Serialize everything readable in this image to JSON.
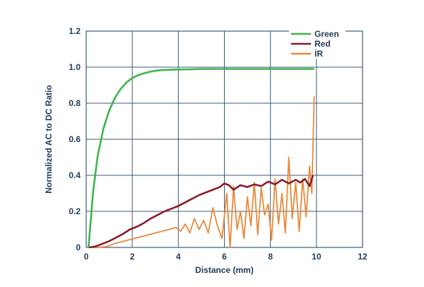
{
  "chart_data": {
    "type": "line",
    "title": "",
    "xlabel": "Distance (mm)",
    "ylabel": "Normalized AC to DC Ratio",
    "xlim": [
      0,
      12
    ],
    "ylim": [
      0,
      1.2
    ],
    "x_ticks": [
      "0",
      "2",
      "4",
      "6",
      "8",
      "10",
      "12"
    ],
    "y_ticks": [
      "0",
      "0.2",
      "0.4",
      "0.6",
      "0.8",
      "1.0",
      "1.2"
    ],
    "grid": true,
    "legend_position": "top-right",
    "series": [
      {
        "name": "Green",
        "color": "#3cb54a",
        "x": [
          0.1,
          0.3,
          0.5,
          0.75,
          1.0,
          1.25,
          1.5,
          1.75,
          2.0,
          2.25,
          2.5,
          2.75,
          3.0,
          3.25,
          3.5,
          3.75,
          4.0,
          4.5,
          5.0,
          6.0,
          7.0,
          8.0,
          9.0,
          9.9
        ],
        "y": [
          0.0,
          0.31,
          0.51,
          0.66,
          0.76,
          0.83,
          0.88,
          0.915,
          0.94,
          0.955,
          0.966,
          0.974,
          0.98,
          0.983,
          0.985,
          0.986,
          0.987,
          0.988,
          0.99,
          0.99,
          0.99,
          0.99,
          0.99,
          0.99
        ]
      },
      {
        "name": "Red",
        "color": "#8b1a2b",
        "x": [
          0.1,
          0.4,
          0.7,
          1.0,
          1.3,
          1.6,
          1.9,
          2.2,
          2.5,
          2.8,
          3.1,
          3.4,
          3.7,
          4.0,
          4.3,
          4.6,
          4.9,
          5.2,
          5.5,
          5.8,
          6.0,
          6.2,
          6.4,
          6.7,
          7.0,
          7.3,
          7.6,
          7.9,
          8.2,
          8.5,
          8.8,
          9.1,
          9.3,
          9.5,
          9.7,
          9.85
        ],
        "y": [
          0.0,
          0.005,
          0.02,
          0.035,
          0.055,
          0.075,
          0.1,
          0.115,
          0.135,
          0.16,
          0.18,
          0.2,
          0.215,
          0.23,
          0.25,
          0.27,
          0.29,
          0.305,
          0.32,
          0.335,
          0.355,
          0.345,
          0.32,
          0.345,
          0.335,
          0.35,
          0.34,
          0.365,
          0.35,
          0.375,
          0.355,
          0.375,
          0.36,
          0.38,
          0.34,
          0.4
        ]
      },
      {
        "name": "IR",
        "color": "#e8893a",
        "x": [
          0.1,
          0.5,
          0.9,
          1.2,
          1.5,
          1.8,
          2.1,
          2.4,
          2.7,
          3.0,
          3.3,
          3.6,
          3.9,
          4.1,
          4.3,
          4.5,
          4.7,
          4.9,
          5.1,
          5.3,
          5.5,
          5.7,
          5.9,
          6.1,
          6.25,
          6.4,
          6.55,
          6.7,
          6.85,
          7.0,
          7.15,
          7.3,
          7.45,
          7.6,
          7.75,
          7.9,
          8.05,
          8.2,
          8.35,
          8.5,
          8.65,
          8.8,
          8.95,
          9.1,
          9.25,
          9.4,
          9.55,
          9.7,
          9.8,
          9.9
        ],
        "y": [
          0.0,
          0.0,
          0.005,
          0.02,
          0.03,
          0.04,
          0.05,
          0.06,
          0.07,
          0.08,
          0.09,
          0.1,
          0.11,
          0.09,
          0.13,
          0.08,
          0.16,
          0.1,
          0.15,
          0.08,
          0.22,
          0.12,
          0.05,
          0.3,
          0.0,
          0.34,
          0.1,
          0.2,
          0.05,
          0.28,
          0.12,
          0.36,
          0.07,
          0.33,
          0.18,
          0.24,
          0.04,
          0.38,
          0.13,
          0.3,
          0.08,
          0.5,
          0.16,
          0.36,
          0.09,
          0.38,
          0.17,
          0.45,
          0.3,
          0.84
        ]
      }
    ]
  }
}
